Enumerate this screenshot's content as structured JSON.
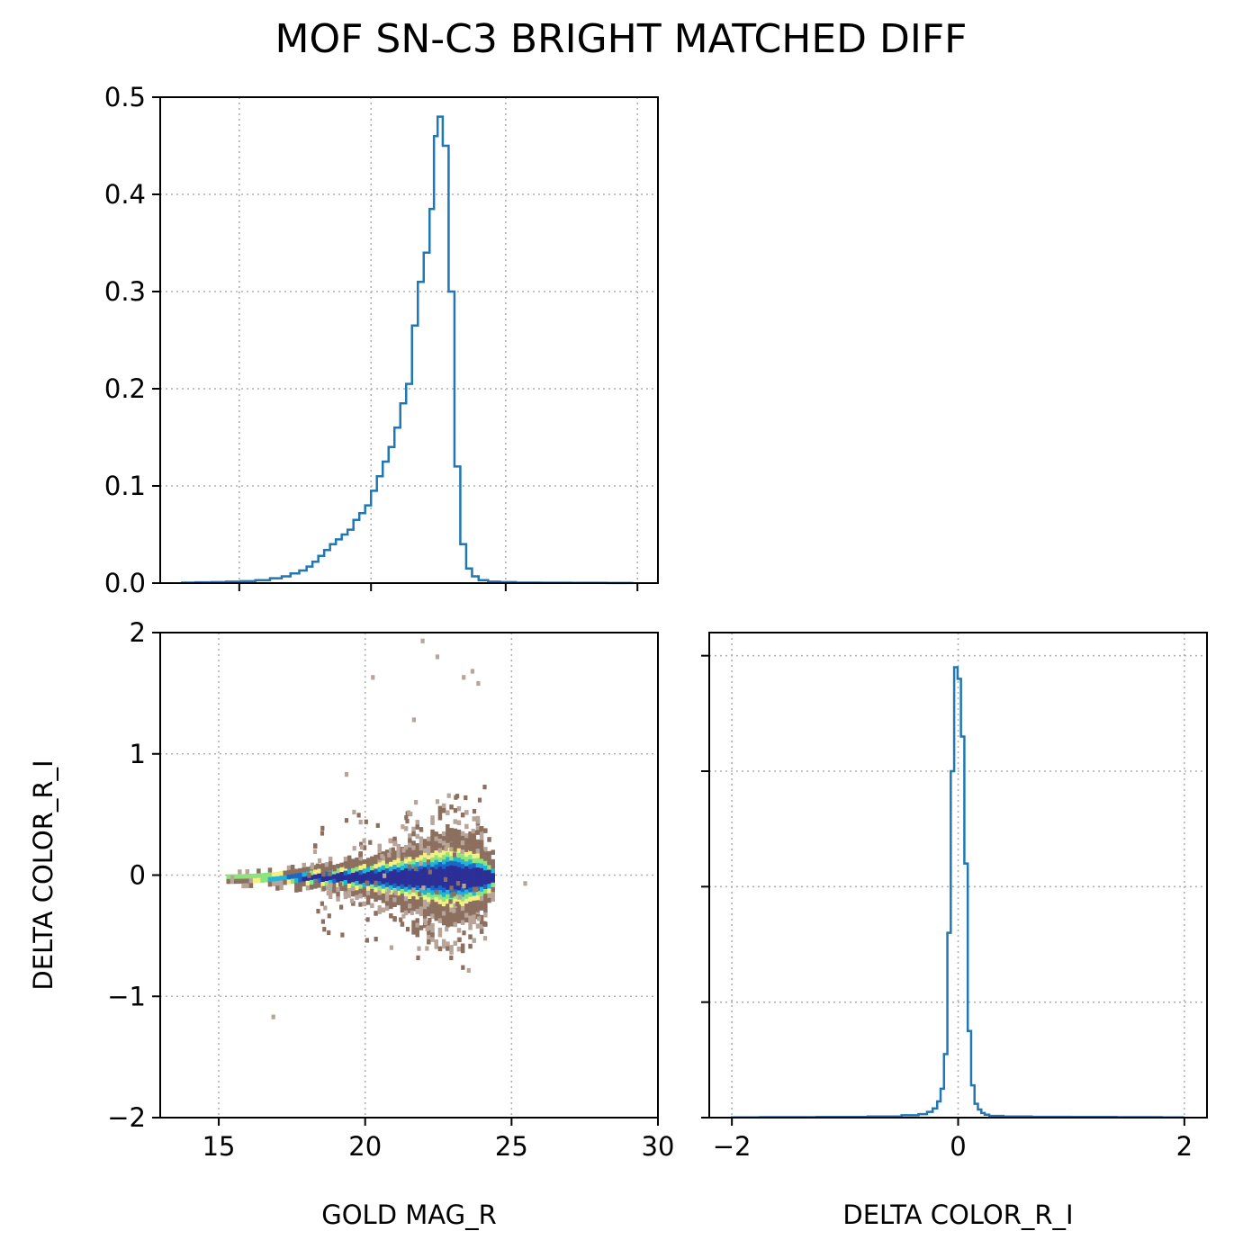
{
  "figure": {
    "title": "MOF SN-C3 BRIGHT MATCHED DIFF"
  },
  "chart_data": [
    {
      "panel": "top-left",
      "type": "histogram",
      "xlabel": "",
      "ylabel": "",
      "xlim": [
        13,
        30
      ],
      "ylim": [
        0,
        0.5
      ],
      "x_gridlines": [
        15.7,
        20.2,
        24.8,
        29.3
      ],
      "yticks": [
        0.0,
        0.1,
        0.2,
        0.3,
        0.4,
        0.5
      ],
      "ytick_labels": [
        "0.0",
        "0.1",
        "0.2",
        "0.3",
        "0.4",
        "0.5"
      ],
      "grid": true,
      "line_color": "#1f77b4",
      "bins": [
        [
          13.9,
          0.0005
        ],
        [
          14.5,
          0.0008
        ],
        [
          15.0,
          0.001
        ],
        [
          15.5,
          0.0015
        ],
        [
          16.0,
          0.002
        ],
        [
          16.5,
          0.003
        ],
        [
          17.0,
          0.005
        ],
        [
          17.3,
          0.007
        ],
        [
          17.6,
          0.01
        ],
        [
          17.9,
          0.013
        ],
        [
          18.1,
          0.017
        ],
        [
          18.3,
          0.022
        ],
        [
          18.5,
          0.028
        ],
        [
          18.7,
          0.034
        ],
        [
          18.9,
          0.04
        ],
        [
          19.1,
          0.045
        ],
        [
          19.3,
          0.05
        ],
        [
          19.5,
          0.055
        ],
        [
          19.7,
          0.065
        ],
        [
          19.9,
          0.072
        ],
        [
          20.1,
          0.08
        ],
        [
          20.3,
          0.095
        ],
        [
          20.5,
          0.11
        ],
        [
          20.7,
          0.125
        ],
        [
          20.9,
          0.14
        ],
        [
          21.1,
          0.16
        ],
        [
          21.3,
          0.185
        ],
        [
          21.5,
          0.205
        ],
        [
          21.7,
          0.265
        ],
        [
          21.9,
          0.31
        ],
        [
          22.1,
          0.34
        ],
        [
          22.3,
          0.385
        ],
        [
          22.4,
          0.46
        ],
        [
          22.55,
          0.48
        ],
        [
          22.75,
          0.45
        ],
        [
          22.95,
          0.3
        ],
        [
          23.15,
          0.12
        ],
        [
          23.35,
          0.04
        ],
        [
          23.55,
          0.015
        ],
        [
          23.75,
          0.007
        ],
        [
          24.0,
          0.003
        ],
        [
          24.4,
          0.0015
        ],
        [
          24.8,
          0.001
        ],
        [
          25.5,
          0.0005
        ],
        [
          26.5,
          0.0003
        ],
        [
          27.5,
          0.0002
        ],
        [
          29.0,
          0.0001
        ]
      ]
    },
    {
      "panel": "bottom-left",
      "type": "heatmap",
      "xlabel": "GOLD MAG_R",
      "ylabel": "DELTA COLOR_R_I",
      "xlim": [
        13,
        30
      ],
      "ylim": [
        -2,
        2
      ],
      "xticks": [
        15,
        20,
        25,
        30
      ],
      "xtick_labels": [
        "15",
        "20",
        "25",
        "30"
      ],
      "yticks": [
        -2,
        -1,
        0,
        1,
        2
      ],
      "ytick_labels": [
        "−2",
        "−1",
        "0",
        "1",
        "2"
      ],
      "grid": true,
      "colormap": "terrain",
      "colors": [
        "#b8a59a",
        "#8c6f5f",
        "#f5f083",
        "#8fe37d",
        "#22b3d6",
        "#1a67c9",
        "#2b2f96"
      ],
      "outliers": [
        [
          16.8,
          -1.15
        ],
        [
          21.9,
          1.95
        ],
        [
          22.4,
          1.82
        ],
        [
          21.6,
          1.3
        ],
        [
          23.3,
          1.65
        ],
        [
          23.6,
          1.7
        ],
        [
          23.8,
          1.6
        ],
        [
          20.2,
          1.65
        ],
        [
          19.3,
          0.85
        ],
        [
          25.4,
          -0.05
        ],
        [
          15.4,
          0.0
        ]
      ],
      "core": {
        "tail_start_x": 15.2,
        "peak_x": 22.8,
        "end_x": 23.8,
        "center_y": 0.0
      }
    },
    {
      "panel": "bottom-right",
      "type": "histogram",
      "xlabel": "DELTA COLOR_R_I",
      "ylabel": "",
      "xlim": [
        -2.2,
        2.2
      ],
      "xticks": [
        -2,
        0,
        2
      ],
      "xtick_labels": [
        "−2",
        "0",
        "2"
      ],
      "y_gridlines": [
        0.0,
        1.0,
        2.0,
        3.0,
        4.0
      ],
      "grid": true,
      "line_color": "#1f77b4",
      "ymax_data": 4.2,
      "bins": [
        [
          -2.0,
          0.002
        ],
        [
          -1.5,
          0.004
        ],
        [
          -1.0,
          0.006
        ],
        [
          -0.6,
          0.01
        ],
        [
          -0.4,
          0.02
        ],
        [
          -0.3,
          0.03
        ],
        [
          -0.25,
          0.05
        ],
        [
          -0.2,
          0.08
        ],
        [
          -0.17,
          0.14
        ],
        [
          -0.14,
          0.25
        ],
        [
          -0.11,
          0.55
        ],
        [
          -0.08,
          1.6
        ],
        [
          -0.05,
          3.0
        ],
        [
          -0.02,
          3.9
        ],
        [
          0.01,
          3.8
        ],
        [
          0.04,
          3.3
        ],
        [
          0.07,
          2.2
        ],
        [
          0.1,
          0.75
        ],
        [
          0.13,
          0.28
        ],
        [
          0.16,
          0.12
        ],
        [
          0.19,
          0.07
        ],
        [
          0.22,
          0.04
        ],
        [
          0.25,
          0.025
        ],
        [
          0.3,
          0.015
        ],
        [
          0.5,
          0.01
        ],
        [
          0.8,
          0.007
        ],
        [
          1.2,
          0.006
        ],
        [
          1.6,
          0.004
        ],
        [
          2.0,
          0.002
        ]
      ]
    }
  ]
}
